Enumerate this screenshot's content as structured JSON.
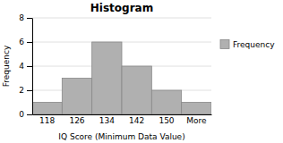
{
  "chart_data": {
    "type": "bar",
    "title": "Histogram",
    "xlabel": "IQ Score (Minimum Data Value)",
    "ylabel": "Frequency",
    "categories": [
      "118",
      "126",
      "134",
      "142",
      "150",
      "More"
    ],
    "series": [
      {
        "name": "Frequency",
        "color": "#b0b0b0",
        "values": [
          1,
          3,
          6,
          4,
          2,
          1
        ]
      }
    ],
    "ylim": [
      0,
      8
    ],
    "yticks": [
      0,
      2,
      4,
      6,
      8
    ],
    "grid": true,
    "legend": "right"
  }
}
